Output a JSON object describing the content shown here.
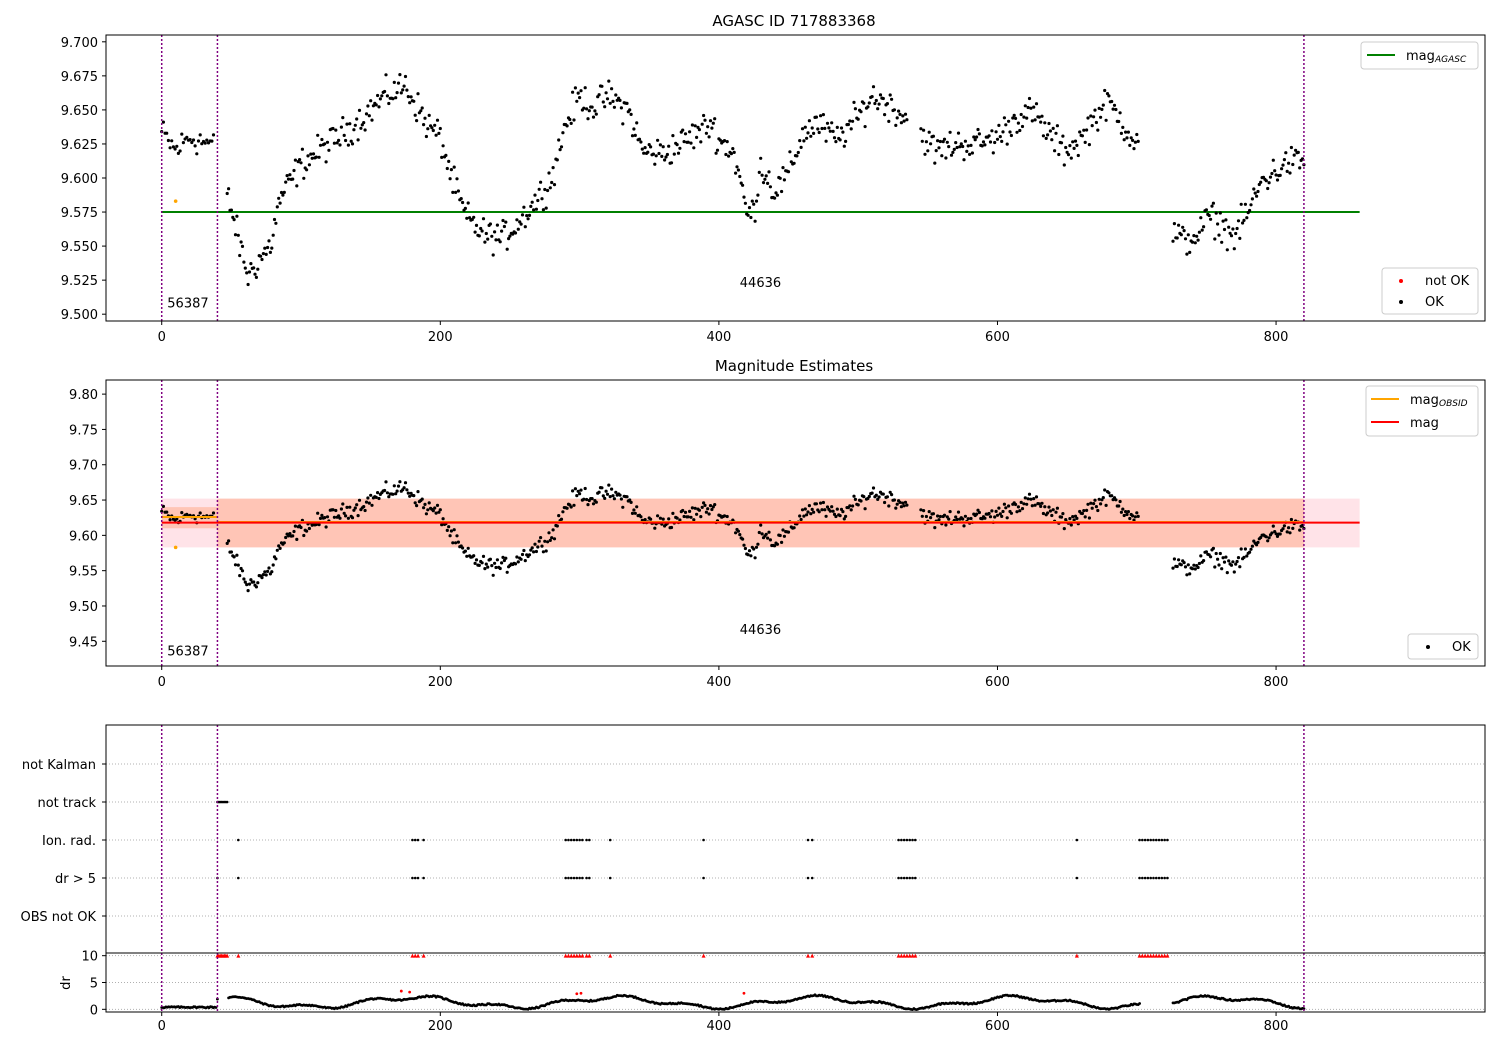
{
  "chart_data": [
    {
      "type": "scatter",
      "title": "AGASC ID 717883368",
      "xlim": [
        -40,
        950
      ],
      "ylim": [
        9.495,
        9.705
      ],
      "xticks": [
        "0",
        "200",
        "400",
        "600",
        "800"
      ],
      "yticks": [
        "9.500",
        "9.525",
        "9.550",
        "9.575",
        "9.600",
        "9.625",
        "9.650",
        "9.675",
        "9.700"
      ],
      "grid": false,
      "obs_boundaries": [
        0,
        40,
        820
      ],
      "obs_labels": [
        {
          "x": 4,
          "y": 9.505,
          "text": "56387"
        },
        {
          "x": 415,
          "y": 9.52,
          "text": "44636"
        }
      ],
      "hlines": [
        {
          "name": "mag_AGASC",
          "y": 9.575,
          "x0": 0,
          "x1": 860,
          "color": "#008000"
        }
      ],
      "series": [
        {
          "name": "not OK",
          "color": "#ff0000",
          "values": []
        },
        {
          "name": "OK",
          "color": "#000000"
        },
        {
          "name": "OBSID estimate",
          "color": "#ffa500",
          "values": [
            [
              10,
              9.583
            ]
          ]
        }
      ],
      "legends": [
        {
          "position": "top-right",
          "items": [
            {
              "kind": "line",
              "color": "#008000",
              "label": "mag",
              "sub": "AGASC"
            }
          ]
        },
        {
          "position": "bottom-right",
          "items": [
            {
              "kind": "dot",
              "color": "#ff0000",
              "label": "not OK"
            },
            {
              "kind": "dot",
              "color": "#000000",
              "label": "OK"
            }
          ]
        }
      ]
    },
    {
      "type": "scatter",
      "title": "Magnitude Estimates",
      "xlim": [
        -40,
        950
      ],
      "ylim": [
        9.415,
        9.82
      ],
      "xticks": [
        "0",
        "200",
        "400",
        "600",
        "800"
      ],
      "yticks": [
        "9.45",
        "9.50",
        "9.55",
        "9.60",
        "9.65",
        "9.70",
        "9.75",
        "9.80"
      ],
      "grid": false,
      "obs_boundaries": [
        0,
        40,
        820
      ],
      "obs_labels": [
        {
          "x": 4,
          "y": 9.43,
          "text": "56387"
        },
        {
          "x": 415,
          "y": 9.46,
          "text": "44636"
        }
      ],
      "bands": [
        {
          "x0": 0,
          "x1": 860,
          "y0": 9.583,
          "y1": 9.652,
          "color": "#ffc0cb",
          "opacity": 0.45
        },
        {
          "x0": 0,
          "x1": 40,
          "y0": 9.61,
          "y1": 9.64,
          "color": "#ffa07a",
          "opacity": 0.45
        },
        {
          "x0": 40,
          "x1": 820,
          "y0": 9.583,
          "y1": 9.652,
          "color": "#ffa07a",
          "opacity": 0.45
        }
      ],
      "hlines": [
        {
          "name": "mag_OBSID_1",
          "y": 9.626,
          "x0": 0,
          "x1": 40,
          "color": "#ffa500"
        },
        {
          "name": "mag_OBSID_2",
          "y": 9.619,
          "x0": 40,
          "x1": 820,
          "color": "#ffa500"
        },
        {
          "name": "mag",
          "y": 9.618,
          "x0": 0,
          "x1": 860,
          "color": "#ff0000"
        }
      ],
      "series": [
        {
          "name": "OK",
          "color": "#000000"
        },
        {
          "name": "OBSID estimate",
          "color": "#ffa500",
          "values": [
            [
              10,
              9.583
            ]
          ]
        }
      ],
      "legends": [
        {
          "position": "top-right",
          "items": [
            {
              "kind": "line",
              "color": "#ffa500",
              "label": "mag",
              "sub": "OBSID"
            },
            {
              "kind": "line",
              "color": "#ff0000",
              "label": "mag",
              "sub": ""
            }
          ]
        },
        {
          "position": "bottom-right",
          "items": [
            {
              "kind": "dot",
              "color": "#000000",
              "label": "OK"
            }
          ]
        }
      ]
    },
    {
      "type": "scatter",
      "title": "",
      "xlim": [
        -40,
        950
      ],
      "categories": [
        "OBS not OK",
        "dr > 5",
        "Ion. rad.",
        "not track",
        "not Kalman"
      ],
      "grid": true,
      "obs_boundaries": [
        0,
        40,
        820
      ],
      "flags": {
        "not track": [
          40,
          41,
          42,
          43,
          44,
          45,
          46,
          47
        ],
        "Ion. rad.": [
          55,
          180,
          182,
          184,
          188,
          290,
          292,
          294,
          296,
          298,
          300,
          302,
          305,
          307,
          322,
          389,
          464,
          467,
          529,
          531,
          533,
          535,
          537,
          539,
          541,
          657,
          702,
          704,
          706,
          708,
          710,
          712,
          714,
          716,
          718,
          720,
          722
        ],
        "dr > 5": [
          40,
          55,
          180,
          182,
          184,
          188,
          290,
          292,
          294,
          296,
          298,
          300,
          302,
          305,
          307,
          322,
          389,
          464,
          467,
          529,
          531,
          533,
          535,
          537,
          539,
          541,
          657,
          702,
          704,
          706,
          708,
          710,
          712,
          714,
          716,
          718,
          720,
          722
        ]
      }
    },
    {
      "type": "scatter",
      "title": "",
      "ylabel": "dr",
      "xlim": [
        -40,
        950
      ],
      "ylim": [
        -0.5,
        10.5
      ],
      "xticks": [
        "0",
        "200",
        "400",
        "600",
        "800"
      ],
      "yticks": [
        "0",
        "5",
        "10"
      ],
      "grid": true,
      "obs_boundaries": [
        0,
        40,
        820
      ],
      "capped_red_x": [
        40,
        41,
        42,
        43,
        44,
        45,
        46,
        47,
        55,
        180,
        182,
        184,
        188,
        290,
        292,
        294,
        296,
        298,
        300,
        302,
        305,
        307,
        322,
        389,
        464,
        467,
        529,
        531,
        533,
        535,
        537,
        539,
        541,
        657,
        702,
        704,
        706,
        708,
        710,
        712,
        714,
        716,
        718,
        720,
        722
      ],
      "capped_value": 10,
      "red_points": [
        [
          172,
          3.4
        ],
        [
          178,
          3.2
        ],
        [
          298,
          2.9
        ],
        [
          301,
          3.0
        ],
        [
          418,
          3.0
        ]
      ]
    }
  ]
}
